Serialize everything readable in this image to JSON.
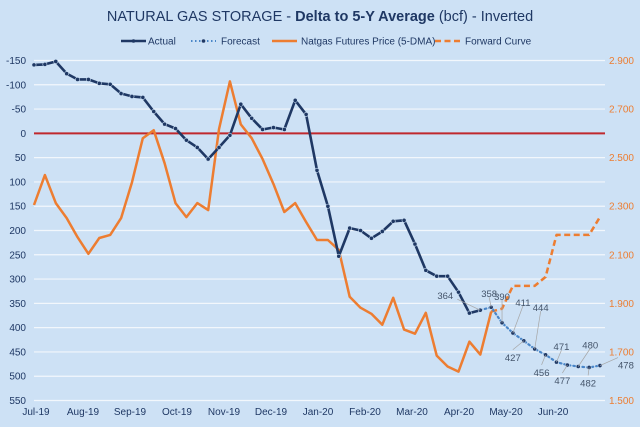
{
  "chart_data": {
    "type": "line",
    "title_parts": {
      "prefix": "NATURAL GAS STORAGE - ",
      "bold": "Delta to 5-Y Average",
      "suffix": " (bcf) - Inverted"
    },
    "title": "NATURAL GAS STORAGE - Delta to 5-Y Average (bcf) - Inverted",
    "legend_position": "top",
    "legend": [
      "Actual",
      "Forecast",
      "Natgas Futures Price (5-DMA)",
      "Forward Curve"
    ],
    "x_tick_labels": [
      "Jul-19",
      "Aug-19",
      "Sep-19",
      "Oct-19",
      "Nov-19",
      "Dec-19",
      "Jan-20",
      "Feb-20",
      "Mar-20",
      "Apr-20",
      "May-20",
      "Jun-20"
    ],
    "x_points": 53,
    "y_left": {
      "label": "Delta to 5-Y Average (bcf)",
      "inverted": true,
      "range": [
        -150,
        550
      ],
      "ticks": [
        "-150",
        "-100",
        "-50",
        "0",
        "50",
        "100",
        "150",
        "200",
        "250",
        "300",
        "350",
        "400",
        "450",
        "500",
        "550"
      ],
      "tick_values": [
        -150,
        -100,
        -50,
        0,
        50,
        100,
        150,
        200,
        250,
        300,
        350,
        400,
        450,
        500,
        550
      ]
    },
    "y_right": {
      "label": "Natgas Futures Price",
      "range": [
        1.5,
        2.9
      ],
      "ticks": [
        "2.900",
        "2.700",
        "2.500",
        "2.300",
        "2.100",
        "1.900",
        "1.700",
        "1.500"
      ],
      "tick_values": [
        2.9,
        2.7,
        2.5,
        2.3,
        2.1,
        1.9,
        1.7,
        1.5
      ]
    },
    "reference_line": {
      "axis": "left",
      "value": 0,
      "color": "#c0282d"
    },
    "grid": true,
    "series": [
      {
        "name": "Actual",
        "axis": "left",
        "style": "solid-markers",
        "color": "#1f3864",
        "start_index": 0,
        "values": [
          -141,
          -142,
          -148,
          -123,
          -111,
          -111,
          -103,
          -101,
          -82,
          -76,
          -74,
          -45,
          -19,
          -10,
          14,
          29,
          53,
          29,
          4,
          -60,
          -31,
          -8,
          -12,
          -8,
          -68,
          -39,
          76,
          150,
          253,
          195,
          200,
          216,
          202,
          181,
          179,
          228,
          282,
          294,
          294,
          327,
          370,
          364
        ]
      },
      {
        "name": "Forecast",
        "axis": "left",
        "style": "dotted-markers",
        "color": "#4a86c8",
        "start_index": 41,
        "values": [
          364,
          358,
          390,
          411,
          427,
          444,
          456,
          471,
          477,
          480,
          482,
          478
        ],
        "data_labels": [
          "364",
          "358",
          "390",
          "411",
          "427",
          "444",
          "456",
          "471",
          "477",
          "480",
          "482",
          "478"
        ]
      },
      {
        "name": "Natgas Futures Price (5-DMA)",
        "axis": "right",
        "style": "solid",
        "color": "#ed7d31",
        "start_index": 0,
        "values": [
          2.305,
          2.428,
          2.313,
          2.251,
          2.173,
          2.104,
          2.169,
          2.182,
          2.251,
          2.399,
          2.58,
          2.613,
          2.477,
          2.313,
          2.255,
          2.313,
          2.284,
          2.617,
          2.814,
          2.637,
          2.58,
          2.494,
          2.391,
          2.276,
          2.313,
          2.235,
          2.161,
          2.161,
          2.12,
          1.927,
          1.882,
          1.857,
          1.812,
          1.923,
          1.792,
          1.775,
          1.861,
          1.685,
          1.64,
          1.619,
          1.742,
          1.689,
          1.866
        ]
      },
      {
        "name": "Forward Curve",
        "axis": "right",
        "style": "dashed",
        "color": "#ed7d31",
        "start_index": 42,
        "values": [
          1.866,
          1.878,
          1.972,
          1.972,
          1.972,
          2.009,
          2.182,
          2.182,
          2.182,
          2.182,
          2.256
        ]
      }
    ]
  }
}
